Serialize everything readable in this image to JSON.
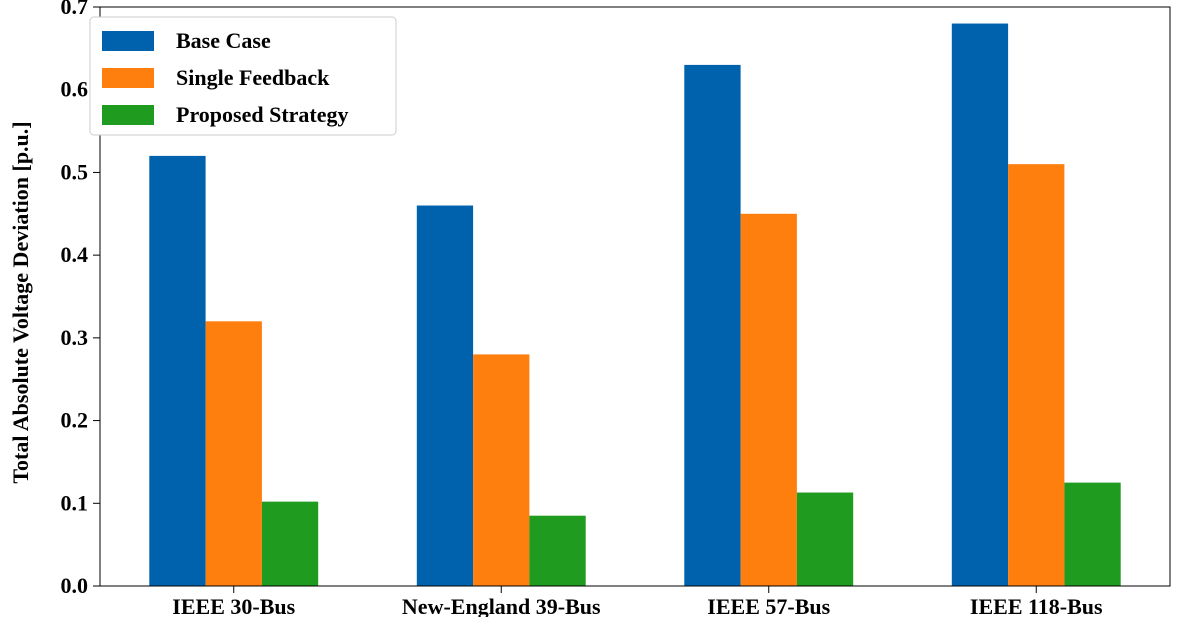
{
  "chart_data": {
    "type": "bar",
    "title": "",
    "xlabel": "",
    "ylabel": "Total Absolute Voltage Deviation [p.u.]",
    "ylim": [
      0,
      0.7
    ],
    "yticks": [
      "0.0",
      "0.1",
      "0.2",
      "0.3",
      "0.4",
      "0.5",
      "0.6",
      "0.7"
    ],
    "grid": false,
    "legend_position": "top-left",
    "categories": [
      "IEEE 30-Bus",
      "New-England 39-Bus",
      "IEEE 57-Bus",
      "IEEE 118-Bus"
    ],
    "series": [
      {
        "name": "Base Case",
        "color": "#0062ad",
        "values": [
          0.52,
          0.46,
          0.63,
          0.68
        ]
      },
      {
        "name": "Single Feedback",
        "color": "#ff7f0e",
        "values": [
          0.32,
          0.28,
          0.45,
          0.51
        ]
      },
      {
        "name": "Proposed Strategy",
        "color": "#1f9b1f",
        "values": [
          0.102,
          0.085,
          0.113,
          0.125
        ]
      }
    ]
  }
}
